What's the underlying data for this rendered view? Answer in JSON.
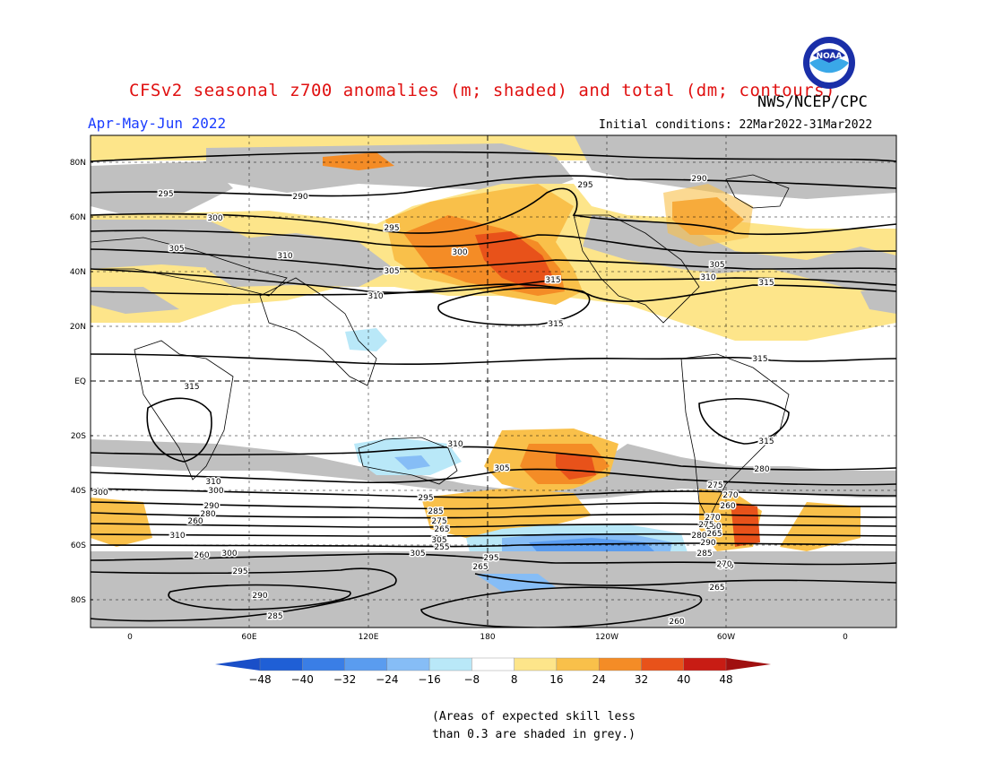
{
  "title": "CFSv2 seasonal z700 anomalies (m; shaded) and total (dm; contours)",
  "agency": "NWS/NCEP/CPC",
  "season": "Apr-May-Jun 2022",
  "initial_conditions": "Initial conditions: 22Mar2022-31Mar2022",
  "logo_text": "NOAA",
  "lat_labels": [
    "80N",
    "60N",
    "40N",
    "20N",
    "EQ",
    "20S",
    "40S",
    "60S",
    "80S"
  ],
  "lon_labels": [
    "0",
    "60E",
    "120E",
    "180",
    "120W",
    "60W",
    "0"
  ],
  "colorbar": {
    "ticks": [
      "-48",
      "-40",
      "-32",
      "-24",
      "-16",
      "-8",
      "8",
      "16",
      "24",
      "32",
      "40",
      "48"
    ],
    "colors": [
      "#1f5fd6",
      "#3a7ee6",
      "#5a9cef",
      "#86bdf6",
      "#b9e8f8",
      "#ffffff",
      "#fde58a",
      "#f9c04a",
      "#f48c26",
      "#e8521a",
      "#c81c14"
    ],
    "low_arrow_color": "#1a4fc8",
    "high_arrow_color": "#a01010"
  },
  "contour_labels": [
    "295",
    "290",
    "295",
    "290",
    "300",
    "295",
    "305",
    "310",
    "300",
    "305",
    "310",
    "315",
    "315",
    "305",
    "310",
    "315",
    "315",
    "315",
    "315",
    "310",
    "310",
    "305",
    "300",
    "300",
    "295",
    "290",
    "285",
    "280",
    "275",
    "270",
    "260",
    "260",
    "265",
    "265",
    "310",
    "305",
    "300",
    "295",
    "290",
    "285",
    "280",
    "275",
    "270",
    "260",
    "255",
    "265",
    "305",
    "300",
    "295",
    "290",
    "285",
    "280",
    "275",
    "270",
    "265",
    "260",
    "260"
  ],
  "footnote": {
    "line1": "(Areas of expected skill less",
    "line2": "than 0.3 are shaded in grey.)"
  }
}
